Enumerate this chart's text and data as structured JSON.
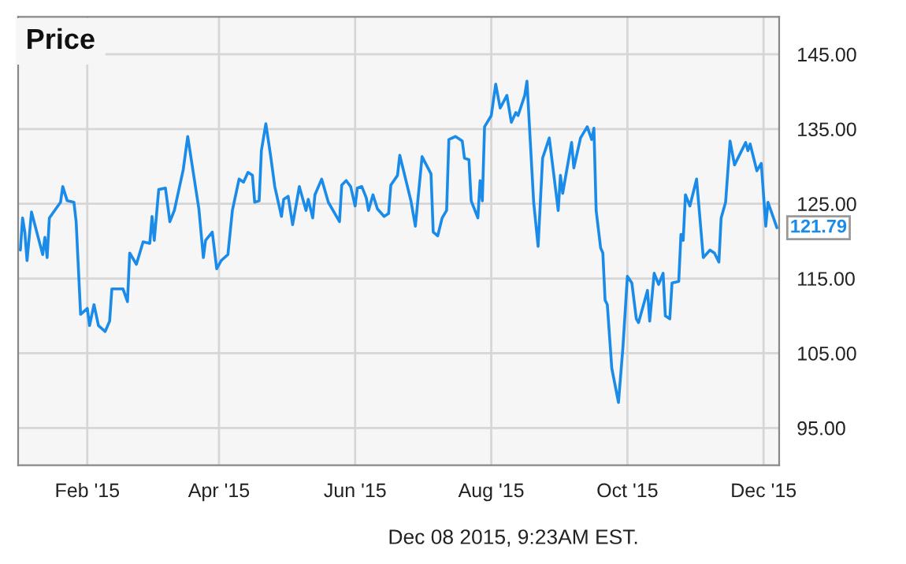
{
  "chart_data": {
    "type": "line",
    "title": "Price",
    "annotations": [
      "Dec 08 2015, 9:23AM EST."
    ],
    "x": [
      "2015-01-02",
      "2015-01-03",
      "2015-01-04",
      "2015-01-05",
      "2015-01-07",
      "2015-01-12",
      "2015-01-13",
      "2015-01-14",
      "2015-01-15",
      "2015-01-20",
      "2015-01-21",
      "2015-01-23",
      "2015-01-26",
      "2015-01-27",
      "2015-01-29",
      "2015-02-01",
      "2015-02-02",
      "2015-02-04",
      "2015-02-06",
      "2015-02-09",
      "2015-02-11",
      "2015-02-12",
      "2015-02-17",
      "2015-02-19",
      "2015-02-20",
      "2015-02-23",
      "2015-02-26",
      "2015-03-01",
      "2015-03-02",
      "2015-03-03",
      "2015-03-05",
      "2015-03-08",
      "2015-03-10",
      "2015-03-12",
      "2015-03-16",
      "2015-03-18",
      "2015-03-23",
      "2015-03-25",
      "2015-03-26",
      "2015-03-29",
      "2015-03-31",
      "2015-04-02",
      "2015-04-05",
      "2015-04-07",
      "2015-04-10",
      "2015-04-12",
      "2015-04-14",
      "2015-04-16",
      "2015-04-17",
      "2015-04-19",
      "2015-04-20",
      "2015-04-22",
      "2015-04-24",
      "2015-04-26",
      "2015-04-29",
      "2015-04-30",
      "2015-05-02",
      "2015-05-04",
      "2015-05-07",
      "2015-05-10",
      "2015-05-11",
      "2015-05-13",
      "2015-05-14",
      "2015-05-17",
      "2015-05-20",
      "2015-05-25",
      "2015-05-26",
      "2015-05-28",
      "2015-05-30",
      "2015-06-01",
      "2015-06-02",
      "2015-06-04",
      "2015-06-06",
      "2015-06-07",
      "2015-06-09",
      "2015-06-11",
      "2015-06-14",
      "2015-06-16",
      "2015-06-17",
      "2015-06-20",
      "2015-06-21",
      "2015-06-26",
      "2015-06-28",
      "2015-07-01",
      "2015-07-05",
      "2015-07-06",
      "2015-07-08",
      "2015-07-10",
      "2015-07-12",
      "2015-07-13",
      "2015-07-16",
      "2015-07-19",
      "2015-07-20",
      "2015-07-22",
      "2015-07-23",
      "2015-07-26",
      "2015-07-27",
      "2015-07-28",
      "2015-07-29",
      "2015-08-01",
      "2015-08-03",
      "2015-08-05",
      "2015-08-08",
      "2015-08-10",
      "2015-08-12",
      "2015-08-13",
      "2015-08-16",
      "2015-08-17",
      "2015-08-20",
      "2015-08-22",
      "2015-08-24",
      "2015-08-27",
      "2015-08-31",
      "2015-09-01",
      "2015-09-02",
      "2015-09-06",
      "2015-09-07",
      "2015-09-10",
      "2015-09-13",
      "2015-09-15",
      "2015-09-16",
      "2015-09-17",
      "2015-09-19",
      "2015-09-20",
      "2015-09-21",
      "2015-09-22",
      "2015-09-24",
      "2015-09-27",
      "2015-09-29",
      "2015-10-01",
      "2015-10-03",
      "2015-10-05",
      "2015-10-06",
      "2015-10-10",
      "2015-10-11",
      "2015-10-13",
      "2015-10-15",
      "2015-10-17",
      "2015-10-18",
      "2015-10-20",
      "2015-10-21",
      "2015-10-24",
      "2015-10-25",
      "2015-10-26",
      "2015-10-27",
      "2015-10-29",
      "2015-11-01",
      "2015-11-04",
      "2015-11-07",
      "2015-11-09",
      "2015-11-11",
      "2015-11-12",
      "2015-11-14",
      "2015-11-16",
      "2015-11-18",
      "2015-11-23",
      "2015-11-24",
      "2015-11-25",
      "2015-11-28",
      "2015-11-30",
      "2015-12-02",
      "2015-12-03",
      "2015-12-07"
    ],
    "series": [
      {
        "color": "#1a8be8",
        "values": [
          118.8,
          123.1,
          121.2,
          117.4,
          123.9,
          118.2,
          120.5,
          117.8,
          123.1,
          125.2,
          127.3,
          125.4,
          125.2,
          122.6,
          110.2,
          111.0,
          108.7,
          111.5,
          108.7,
          107.9,
          109.3,
          113.6,
          113.6,
          111.9,
          118.4,
          116.9,
          119.9,
          119.7,
          123.3,
          120.1,
          126.9,
          127.1,
          122.6,
          124.1,
          129.6,
          134.0,
          124.3,
          117.8,
          120.1,
          121.2,
          116.3,
          117.4,
          118.2,
          124.1,
          128.3,
          127.9,
          129.2,
          128.8,
          125.2,
          125.4,
          132.1,
          135.7,
          131.7,
          127.3,
          123.3,
          125.6,
          126.0,
          122.2,
          127.3,
          124.1,
          125.6,
          123.1,
          126.2,
          128.3,
          125.2,
          122.6,
          127.5,
          128.1,
          127.3,
          124.7,
          127.1,
          127.3,
          125.8,
          124.1,
          126.2,
          124.3,
          123.3,
          123.7,
          127.5,
          128.8,
          131.5,
          125.4,
          122.0,
          131.3,
          129.0,
          121.2,
          120.7,
          123.1,
          124.1,
          133.6,
          134.0,
          133.4,
          131.1,
          130.9,
          125.4,
          123.1,
          128.1,
          125.4,
          135.3,
          136.8,
          141.0,
          137.8,
          139.5,
          135.9,
          137.2,
          136.8,
          139.5,
          141.4,
          125.2,
          119.3,
          131.1,
          133.8,
          124.1,
          128.8,
          126.4,
          133.2,
          129.8,
          133.8,
          135.3,
          133.6,
          135.1,
          124.1,
          119.1,
          118.4,
          112.1,
          111.5,
          103.0,
          98.4,
          105.8,
          115.3,
          114.4,
          109.6,
          109.1,
          113.4,
          109.3,
          115.7,
          114.2,
          115.7,
          110.0,
          109.6,
          114.4,
          114.6,
          120.9,
          120.1,
          126.2,
          124.7,
          128.3,
          117.8,
          118.8,
          118.4,
          117.2,
          123.1,
          125.2,
          133.4,
          130.2,
          133.2,
          132.1,
          133.0,
          129.4,
          130.4,
          122.0,
          125.2,
          121.79
        ],
        "value_labels": [
          null,
          null,
          null,
          null,
          null,
          null,
          null,
          null,
          null,
          null,
          null,
          null,
          null,
          null,
          null,
          null,
          null,
          null,
          null,
          null,
          null,
          null,
          null,
          null,
          null,
          null,
          null,
          null,
          null,
          null,
          null,
          null,
          null,
          null,
          null,
          null,
          null,
          null,
          null,
          null,
          null,
          null,
          null,
          null,
          null,
          null,
          null,
          null,
          null,
          null,
          null,
          null,
          null,
          null,
          null,
          null,
          null,
          null,
          null,
          null,
          null,
          null,
          null,
          null,
          null,
          null,
          null,
          null,
          null,
          null,
          null,
          null,
          null,
          null,
          null,
          null,
          null,
          null,
          null,
          null,
          null,
          null,
          null,
          null,
          null,
          null,
          null,
          null,
          null,
          null,
          null,
          null,
          null,
          null,
          null,
          null,
          null,
          null,
          null,
          null,
          null,
          null,
          null,
          null,
          null,
          null,
          null,
          null,
          null,
          null,
          null,
          null,
          null,
          null,
          null,
          null,
          null,
          null,
          null,
          null,
          null,
          null,
          null,
          null,
          null,
          null,
          null,
          null,
          null,
          null,
          null,
          null,
          null,
          null,
          null,
          null,
          null,
          null,
          null,
          null,
          null,
          null,
          null,
          null,
          null,
          null,
          null,
          null,
          null,
          null,
          null,
          null,
          null,
          null,
          null,
          null,
          null,
          null,
          null,
          null,
          null,
          null,
          "121.79"
        ]
      }
    ],
    "xlim": [
      "2015-01-01",
      "2015-12-08"
    ],
    "xticks": [
      {
        "value": "2015-02-01",
        "label": "Feb '15"
      },
      {
        "value": "2015-04-01",
        "label": "Apr '15"
      },
      {
        "value": "2015-06-01",
        "label": "Jun '15"
      },
      {
        "value": "2015-08-01",
        "label": "Aug '15"
      },
      {
        "value": "2015-10-01",
        "label": "Oct '15"
      },
      {
        "value": "2015-12-01",
        "label": "Dec '15"
      }
    ],
    "ylim": [
      90,
      150
    ],
    "yticks": [
      {
        "value": 95,
        "label": "95.00"
      },
      {
        "value": 105,
        "label": "105.00"
      },
      {
        "value": 115,
        "label": "115.00"
      },
      {
        "value": 125,
        "label": "125.00"
      },
      {
        "value": 135,
        "label": "135.00"
      },
      {
        "value": 145,
        "label": "145.00"
      }
    ],
    "grid": true,
    "legend": false,
    "marker": "none",
    "line_style": "solid"
  }
}
